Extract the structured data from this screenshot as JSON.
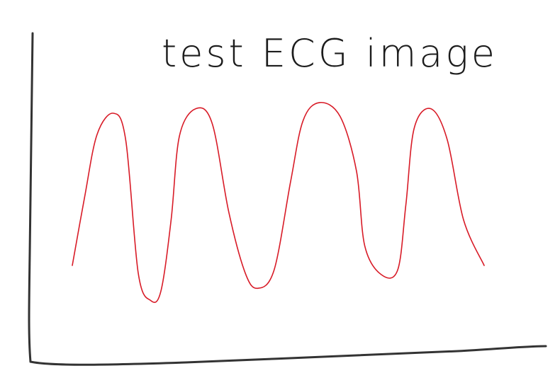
{
  "chart_data": {
    "type": "line",
    "title": "test ECG image",
    "xlabel": "",
    "ylabel": "",
    "grid": false,
    "legend": "none",
    "colors": {
      "axes": "#333333",
      "trace": "#d81b27"
    },
    "series": [
      {
        "points": [
          [
            0.0,
            0.0
          ],
          [
            0.03,
            0.45
          ],
          [
            0.06,
            0.86
          ],
          [
            0.1,
            1.0
          ],
          [
            0.13,
            0.82
          ],
          [
            0.16,
            -0.05
          ],
          [
            0.19,
            -0.23
          ],
          [
            0.215,
            -0.17
          ],
          [
            0.24,
            0.3
          ],
          [
            0.26,
            0.85
          ],
          [
            0.3,
            1.03
          ],
          [
            0.34,
            0.93
          ],
          [
            0.38,
            0.35
          ],
          [
            0.42,
            -0.05
          ],
          [
            0.45,
            -0.15
          ],
          [
            0.49,
            -0.03
          ],
          [
            0.53,
            0.55
          ],
          [
            0.56,
            0.95
          ],
          [
            0.6,
            1.07
          ],
          [
            0.65,
            0.98
          ],
          [
            0.69,
            0.62
          ],
          [
            0.71,
            0.13
          ],
          [
            0.75,
            -0.06
          ],
          [
            0.79,
            -0.03
          ],
          [
            0.81,
            0.4
          ],
          [
            0.83,
            0.9
          ],
          [
            0.87,
            1.03
          ],
          [
            0.91,
            0.83
          ],
          [
            0.95,
            0.3
          ],
          [
            1.0,
            0.0
          ]
        ]
      }
    ]
  }
}
